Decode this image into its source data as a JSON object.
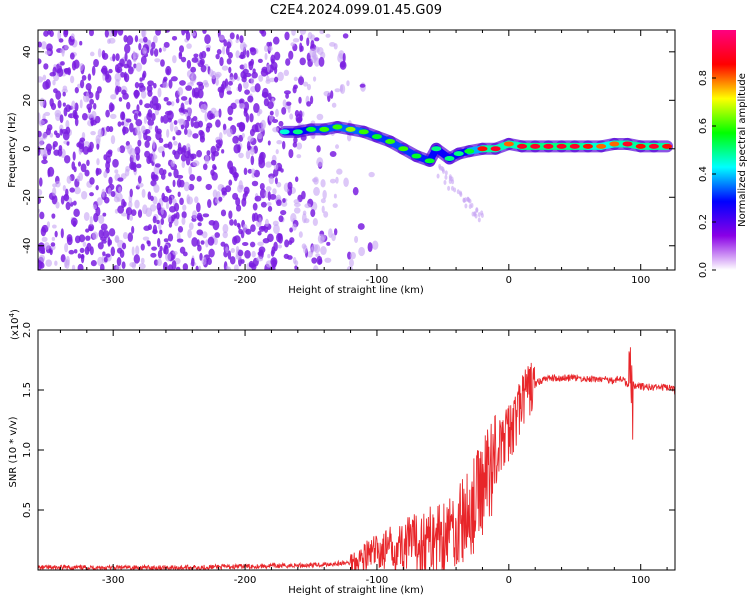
{
  "title": "C2E4.2024.099.01.45.G09",
  "colors": {
    "snr_line": "#e8262a",
    "spec_dot": "#7a1de0",
    "spec_dot_light": "#c7a3f3",
    "axis": "#000000"
  },
  "chart_data": [
    {
      "type": "heatmap",
      "name": "spectrogram",
      "xlabel": "Height of straight line (km)",
      "ylabel": "Frequency (Hz)",
      "xlim": [
        -357,
        126
      ],
      "ylim": [
        -50,
        49
      ],
      "xticks": [
        -300,
        -200,
        -100,
        0,
        100
      ],
      "xtick_labels": [
        "-300",
        "-200",
        "-100",
        "0",
        "100"
      ],
      "yticks": [
        -40,
        -20,
        0,
        20,
        40
      ],
      "ytick_labels": [
        "-40",
        "-20",
        "0",
        "20",
        "40"
      ],
      "colorbar": {
        "label": "Normalized spectral amplitude",
        "range": [
          0,
          1
        ],
        "ticks": [
          0.0,
          0.2,
          0.4,
          0.6,
          0.8
        ],
        "tick_labels": [
          "0.0",
          "0.2",
          "0.4",
          "0.6",
          "0.8"
        ],
        "colors": [
          "#ffffff",
          "#8a00e6",
          "#0000ff",
          "#00ffff",
          "#00ff00",
          "#ffff00",
          "#ff0000",
          "#ff0080"
        ]
      },
      "signal_track": [
        {
          "x": -170,
          "y": 7,
          "amp": 0.45
        },
        {
          "x": -160,
          "y": 7,
          "amp": 0.5
        },
        {
          "x": -150,
          "y": 8,
          "amp": 0.55
        },
        {
          "x": -140,
          "y": 8,
          "amp": 0.6
        },
        {
          "x": -130,
          "y": 9,
          "amp": 0.6
        },
        {
          "x": -120,
          "y": 8,
          "amp": 0.65
        },
        {
          "x": -110,
          "y": 7,
          "amp": 0.6
        },
        {
          "x": -100,
          "y": 5,
          "amp": 0.55
        },
        {
          "x": -90,
          "y": 3,
          "amp": 0.6
        },
        {
          "x": -80,
          "y": 0,
          "amp": 0.6
        },
        {
          "x": -70,
          "y": -3,
          "amp": 0.55
        },
        {
          "x": -60,
          "y": -5,
          "amp": 0.55
        },
        {
          "x": -55,
          "y": 0,
          "amp": 0.5
        },
        {
          "x": -45,
          "y": -4,
          "amp": 0.5
        },
        {
          "x": -38,
          "y": -2,
          "amp": 0.5
        },
        {
          "x": -30,
          "y": -1,
          "amp": 0.55
        },
        {
          "x": -20,
          "y": 0,
          "amp": 0.85
        },
        {
          "x": -10,
          "y": 0,
          "amp": 0.9
        },
        {
          "x": 0,
          "y": 2,
          "amp": 0.8
        },
        {
          "x": 10,
          "y": 1,
          "amp": 0.9
        },
        {
          "x": 20,
          "y": 1,
          "amp": 0.9
        },
        {
          "x": 30,
          "y": 1,
          "amp": 0.9
        },
        {
          "x": 40,
          "y": 1,
          "amp": 0.9
        },
        {
          "x": 50,
          "y": 1,
          "amp": 0.9
        },
        {
          "x": 60,
          "y": 1,
          "amp": 0.85
        },
        {
          "x": 70,
          "y": 1,
          "amp": 0.8
        },
        {
          "x": 80,
          "y": 2,
          "amp": 0.8
        },
        {
          "x": 90,
          "y": 2,
          "amp": 0.9
        },
        {
          "x": 100,
          "y": 1,
          "amp": 0.85
        },
        {
          "x": 110,
          "y": 1,
          "amp": 0.9
        },
        {
          "x": 120,
          "y": 1,
          "amp": 0.85
        }
      ]
    },
    {
      "type": "line",
      "name": "snr",
      "xlabel": "Height of straight line (km)",
      "ylabel": "SNR (10 * v/v)",
      "y_multiplier_label": "(x10",
      "y_multiplier_exp": "4",
      "y_multiplier_close": ")",
      "xlim": [
        -357,
        126
      ],
      "ylim": [
        0,
        2.0
      ],
      "xticks": [
        -300,
        -200,
        -100,
        0,
        100
      ],
      "xtick_labels": [
        "-300",
        "-200",
        "-100",
        "0",
        "100"
      ],
      "yticks": [
        0.5,
        1.0,
        1.5,
        2.0
      ],
      "ytick_labels": [
        "0.5",
        "1.0",
        "1.5",
        "2.0"
      ],
      "series": [
        {
          "x": [
            -357,
            -300,
            -250,
            -200,
            -150,
            -120,
            -100,
            -80,
            -60,
            -50,
            -40,
            -30,
            -20,
            -15,
            -10,
            -5,
            0,
            5,
            10,
            15,
            20,
            25,
            30,
            40,
            50,
            60,
            70,
            80,
            85,
            90,
            92,
            95,
            100,
            110,
            120,
            126
          ],
          "y": [
            0.02,
            0.02,
            0.02,
            0.03,
            0.04,
            0.06,
            0.15,
            0.2,
            0.25,
            0.3,
            0.35,
            0.45,
            0.7,
            0.85,
            0.95,
            1.05,
            1.15,
            1.25,
            1.4,
            1.5,
            1.55,
            1.58,
            1.6,
            1.6,
            1.6,
            1.59,
            1.59,
            1.58,
            1.6,
            1.55,
            1.55,
            1.54,
            1.53,
            1.52,
            1.52,
            1.5
          ]
        }
      ]
    }
  ]
}
